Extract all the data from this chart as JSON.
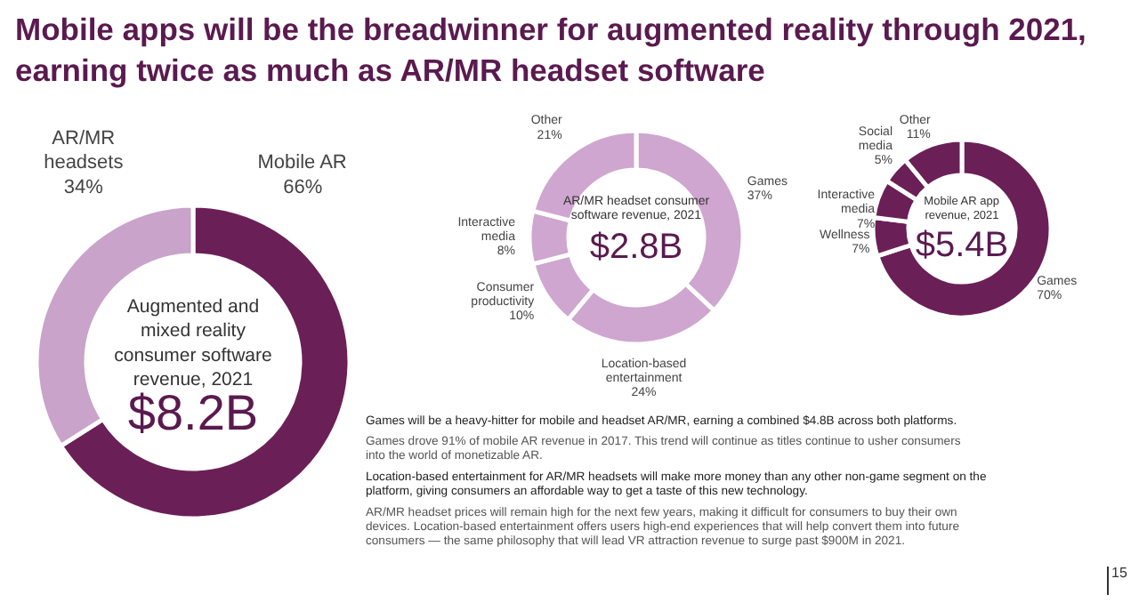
{
  "chart_data": [
    {
      "type": "donut",
      "title": "Mobile apps will be the breadwinner for augmented reality through 2021, earning twice as much as AR/MR headset software",
      "subtitle": "Augmented and mixed reality consumer software revenue, 2021",
      "annotations": [
        "$8.2B"
      ],
      "categories": [
        "Mobile AR",
        "AR/MR headsets"
      ],
      "values": [
        66,
        34
      ],
      "colors": [
        "#6b1f57",
        "#c9a3c9"
      ],
      "value_labels": [
        "66%",
        "34%"
      ]
    },
    {
      "type": "donut",
      "subtitle": "AR/MR headset consumer software revenue, 2021",
      "annotations": [
        "$2.8B"
      ],
      "categories": [
        "Games",
        "Location-based entertainment",
        "Consumer productivity",
        "Interactive media",
        "Other"
      ],
      "values": [
        37,
        24,
        10,
        8,
        21
      ],
      "colors": [
        "#cfa6cf",
        "#cfa6cf",
        "#cfa6cf",
        "#cfa6cf",
        "#cfa6cf"
      ],
      "value_labels": [
        "37%",
        "24%",
        "10%",
        "8%",
        "21%"
      ]
    },
    {
      "type": "donut",
      "subtitle": "Mobile AR app revenue, 2021",
      "annotations": [
        "$5.4B"
      ],
      "categories": [
        "Games",
        "Wellness",
        "Interactive media",
        "Social media",
        "Other"
      ],
      "values": [
        70,
        7,
        7,
        5,
        11
      ],
      "colors": [
        "#6b1f57",
        "#6b1f57",
        "#6b1f57",
        "#6b1f57",
        "#6b1f57"
      ],
      "value_labels": [
        "70%",
        "7%",
        "7%",
        "5%",
        "11%"
      ]
    },
    {
      "type": "other",
      "annotations": [
        "Games will be a heavy-hitter for mobile and headset AR/MR, earning a combined $4.8B across both platforms.",
        "Games drove 91% of mobile AR revenue in 2017. This trend will continue as titles continue to usher consumers into the world of monetizable AR.",
        "Location-based entertainment for AR/MR headsets will make more money than any other non-game segment on the platform, giving consumers an affordable way to get a taste of this new technology.",
        "AR/MR headset prices will remain high for the next few years, making it difficult for consumers to buy their own devices. Location-based entertainment offers users high-end experiences that will help convert them into future consumers — the same philosophy that will lead VR attraction revenue to surge past $900M in 2021.",
        "15"
      ]
    }
  ]
}
